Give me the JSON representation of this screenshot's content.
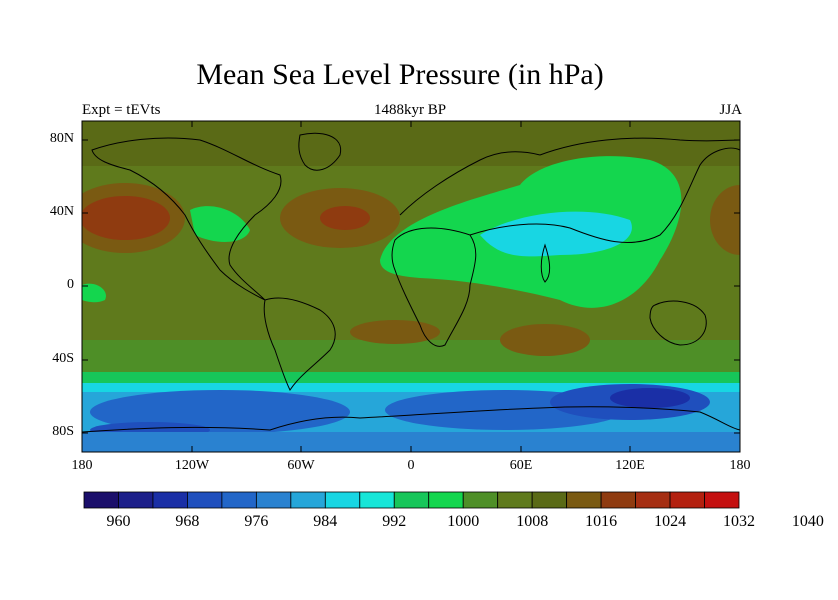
{
  "title": "Mean Sea Level Pressure (in hPa)",
  "left_label": "Expt = tEVts",
  "center_label": "1488kyr BP",
  "right_label": "JJA",
  "y_ticks": [
    "80N",
    "40N",
    "0",
    "40S",
    "80S"
  ],
  "x_ticks": [
    "180",
    "120W",
    "60W",
    "0",
    "60E",
    "120E",
    "180"
  ],
  "colorbar": {
    "labels": [
      "960",
      "968",
      "976",
      "984",
      "992",
      "1000",
      "1008",
      "1016",
      "1024",
      "1032",
      "1040"
    ],
    "colors": [
      "#1b0f6b",
      "#1c1f8a",
      "#1a2fa6",
      "#1f4fbd",
      "#2266c8",
      "#2a82d0",
      "#26a6d9",
      "#18d6e3",
      "#17e6d8",
      "#17c65a",
      "#14d64e",
      "#4e8f27",
      "#5f7a1c",
      "#5a6a16",
      "#7a5a12",
      "#8f3b10",
      "#a52e12",
      "#b3200f",
      "#c41010"
    ]
  },
  "chart_data": {
    "type": "heatmap",
    "title": "Mean Sea Level Pressure (in hPa)",
    "variable": "Mean Sea Level Pressure",
    "units": "hPa",
    "experiment": "tEVts",
    "period": "1488kyr BP",
    "season": "JJA",
    "x_range_lon": [
      -180,
      180
    ],
    "y_range_lat": [
      -90,
      90
    ],
    "levels_hPa": [
      960,
      964,
      968,
      972,
      976,
      980,
      984,
      988,
      992,
      996,
      1000,
      1004,
      1008,
      1012,
      1016,
      1020,
      1024,
      1028,
      1032,
      1036,
      1040
    ]
  }
}
